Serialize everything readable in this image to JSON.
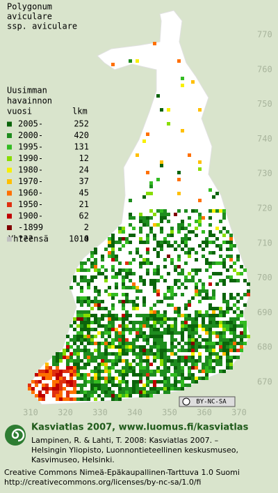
{
  "title": [
    "Polygonum",
    "aviculare",
    "ssp. aviculare"
  ],
  "legend": {
    "heading": [
      "Uusimman",
      "havainnon"
    ],
    "col_year": "vuosi",
    "col_count": "lkm",
    "items": [
      {
        "label": "2005-",
        "count": 252,
        "color": "#0b640b"
      },
      {
        "label": "2000-",
        "count": 420,
        "color": "#1e8c1e"
      },
      {
        "label": "1995-",
        "count": 131,
        "color": "#33bb22"
      },
      {
        "label": "1990-",
        "count": 12,
        "color": "#88dd00"
      },
      {
        "label": "1980-",
        "count": 24,
        "color": "#f8f000"
      },
      {
        "label": "1970-",
        "count": 37,
        "color": "#ffbf00"
      },
      {
        "label": "1960-",
        "count": 45,
        "color": "#ff7000"
      },
      {
        "label": "1950-",
        "count": 21,
        "color": "#e03010"
      },
      {
        "label": "1900-",
        "count": 62,
        "color": "#c00000"
      },
      {
        "label": "-1899",
        "count": 2,
        "color": "#800000"
      },
      {
        "label": "???",
        "count": 4,
        "color": "#c0c0c0"
      }
    ],
    "total_label": "Yhteensä",
    "total": 1010
  },
  "y_grid_labels": [
    770,
    760,
    750,
    740,
    730,
    720,
    710,
    700,
    690,
    680,
    670
  ],
  "x_grid_labels": [
    310,
    320,
    330,
    340,
    350,
    360,
    370
  ],
  "license_badge": "BY-NC-SA",
  "footer": {
    "heading": "Kasviatlas 2007, www.luomus.fi/kasviatlas",
    "citation": [
      "Lampinen, R. & Lahti, T. 2008: Kasviatlas 2007. –",
      "Helsingin Yliopisto, Luonnontieteellinen keskusmuseo,",
      "Kasvimuseo, Helsinki."
    ],
    "license": [
      "Creative Commons Nimeä-Epäkaupallinen-Tarttuva 1.0 Suomi",
      "http://creativecommons.org/licenses/by-nc-sa/1.0/fi"
    ]
  }
}
